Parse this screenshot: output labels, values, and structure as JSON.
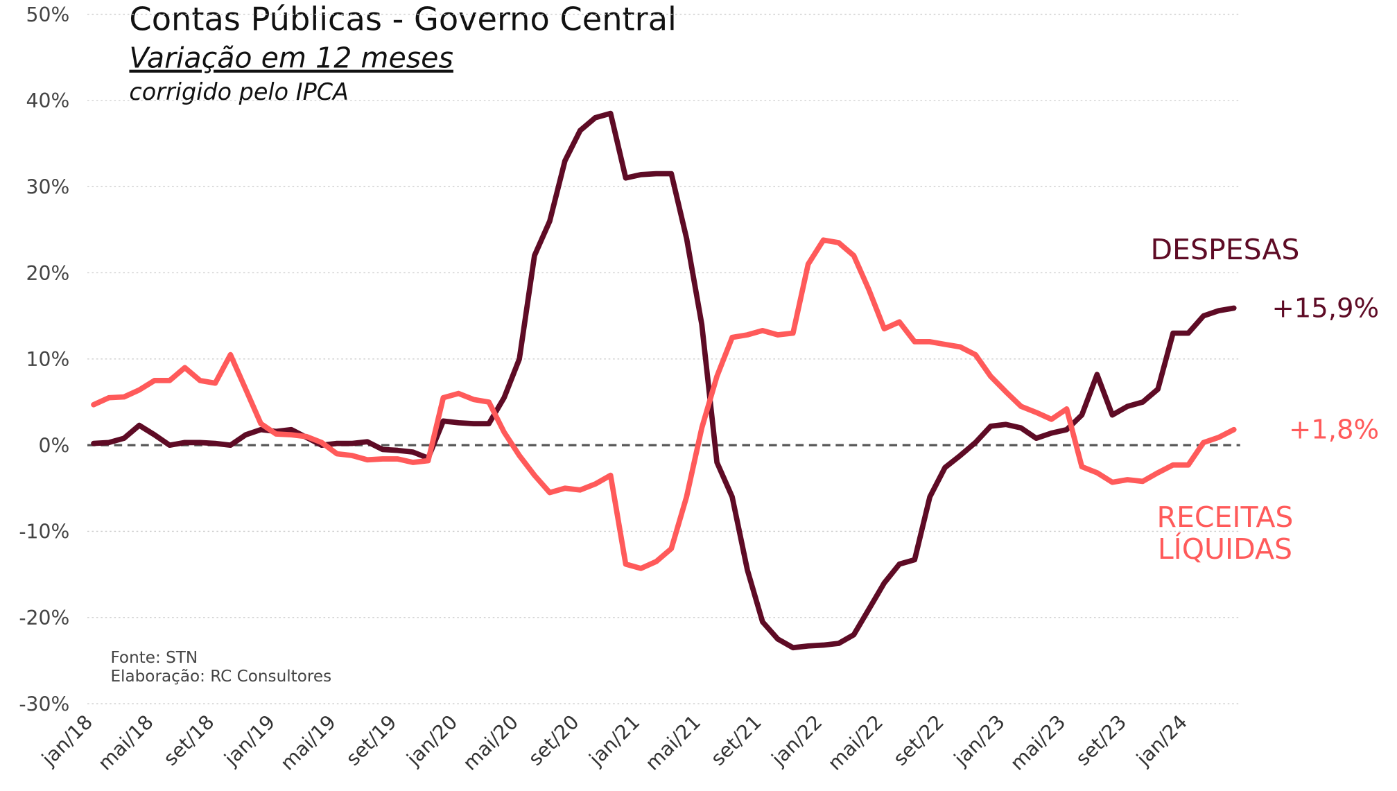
{
  "chart_data": {
    "type": "line",
    "title": "Contas Públicas - Governo Central",
    "subtitle": "Variação em 12 meses",
    "note": "corrigido pelo IPCA",
    "source": "Fonte: STN",
    "credit": "Elaboração: RC Consultores",
    "categories": [
      "jan/18",
      null,
      null,
      null,
      "mai/18",
      null,
      null,
      null,
      "set/18",
      null,
      null,
      null,
      "jan/19",
      null,
      null,
      null,
      "mai/19",
      null,
      null,
      null,
      "set/19",
      null,
      null,
      null,
      "jan/20",
      null,
      null,
      null,
      "mai/20",
      null,
      null,
      null,
      "set/20",
      null,
      null,
      null,
      "jan/21",
      null,
      null,
      null,
      "mai/21",
      null,
      null,
      null,
      "set/21",
      null,
      null,
      null,
      "jan/22",
      null,
      null,
      null,
      "mai/22",
      null,
      null,
      null,
      "set/22",
      null,
      null,
      null,
      "jan/23",
      null,
      null,
      null,
      "mai/23",
      null,
      null,
      null,
      "set/23",
      null,
      null,
      null,
      "jan/24",
      null,
      null,
      null
    ],
    "series": [
      {
        "name": "DESPESAS",
        "color": "#5e0b25",
        "end_label": "+15,9%",
        "values": [
          0.2,
          0.3,
          0.8,
          2.3,
          1.2,
          0.0,
          0.3,
          0.3,
          0.2,
          0.0,
          1.2,
          1.8,
          1.6,
          1.8,
          0.9,
          0.0,
          0.2,
          0.2,
          0.4,
          -0.5,
          -0.6,
          -0.8,
          -1.5,
          2.8,
          2.6,
          2.5,
          2.5,
          5.5,
          10,
          22,
          26,
          33,
          36.5,
          38,
          38.5,
          31,
          31.4,
          31.5,
          31.5,
          24,
          14,
          -2,
          -6,
          -14.5,
          -20.5,
          -22.5,
          -23.5,
          -23.3,
          -23.2,
          -23,
          -22,
          -19,
          -16,
          -13.8,
          -13.3,
          -6,
          -2.6,
          -1.2,
          0.3,
          2.2,
          2.4,
          2,
          0.8,
          1.4,
          1.8,
          3.5,
          8.2,
          3.5,
          4.5,
          5,
          6.5,
          13,
          13,
          15,
          15.6,
          15.9
        ]
      },
      {
        "name": "RECEITAS LÍQUIDAS",
        "color": "#ff5a5a",
        "end_label": "+1,8%",
        "values": [
          4.7,
          5.5,
          5.6,
          6.4,
          7.5,
          7.5,
          9.0,
          7.5,
          7.2,
          10.5,
          6.5,
          2.5,
          1.3,
          1.2,
          1.0,
          0.3,
          -1.0,
          -1.2,
          -1.7,
          -1.6,
          -1.6,
          -2.0,
          -1.8,
          5.5,
          6.0,
          5.3,
          5.0,
          1.5,
          -1.2,
          -3.5,
          -5.5,
          -5.0,
          -5.2,
          -4.5,
          -3.5,
          -13.8,
          -14.3,
          -13.5,
          -12,
          -6,
          2,
          8,
          12.5,
          12.8,
          13.3,
          12.8,
          13,
          21,
          23.8,
          23.5,
          22.0,
          18,
          13.5,
          14.3,
          12,
          12,
          11.7,
          11.4,
          10.5,
          8,
          6.2,
          4.5,
          3.8,
          3.0,
          4.2,
          -2.5,
          -3.2,
          -4.3,
          -4,
          -4.2,
          -3.2,
          -2.3,
          -2.3,
          0.3,
          0.9,
          1.8
        ]
      }
    ],
    "ylim": [
      -30,
      50
    ],
    "yticks": [
      {
        "value": -30,
        "label": "-30%"
      },
      {
        "value": -20,
        "label": "-20%"
      },
      {
        "value": -10,
        "label": "-10%"
      },
      {
        "value": 0,
        "label": "0%"
      },
      {
        "value": 10,
        "label": "10%"
      },
      {
        "value": 20,
        "label": "20%"
      },
      {
        "value": 30,
        "label": "30%"
      },
      {
        "value": 40,
        "label": "40%"
      },
      {
        "value": 50,
        "label": "50%"
      }
    ],
    "grid": true
  }
}
